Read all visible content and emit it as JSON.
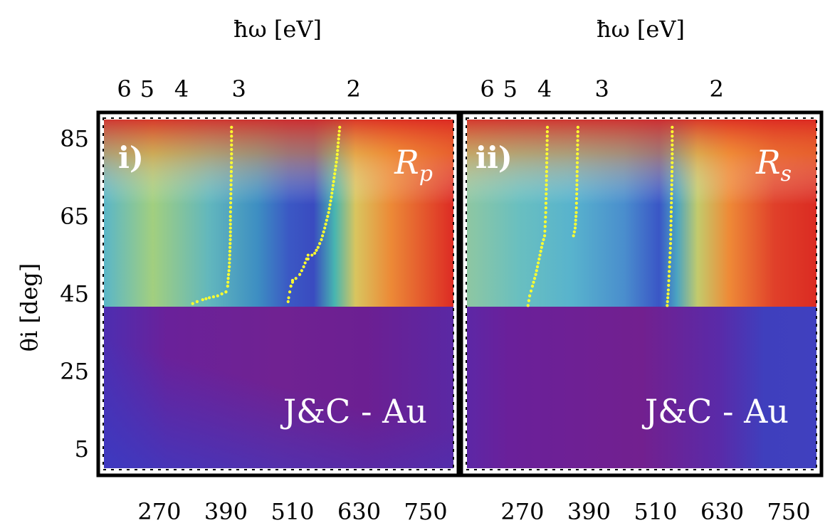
{
  "chart_data": [
    {
      "type": "heatmap",
      "panel_label": "i)",
      "quantity": "Rp",
      "quantity_main": "R",
      "quantity_sub": "p",
      "annotation": "J&C - Au",
      "xlabel_top": "ħω [eV]",
      "ylabel": "θi [deg]",
      "xlim": [
        170,
        800
      ],
      "ylim": [
        0,
        90
      ],
      "x_ticks": [
        270,
        390,
        510,
        630,
        750
      ],
      "x_tick_labels": [
        "270",
        "390",
        "510",
        "630",
        "750"
      ],
      "y_ticks": [
        5,
        25,
        45,
        65,
        85
      ],
      "y_tick_labels": [
        "5",
        "25",
        "45",
        "65",
        "85"
      ],
      "top_ticks": [
        {
          "position": 206.7,
          "label": "6"
        },
        {
          "position": 248,
          "label": "5"
        },
        {
          "position": 310,
          "label": "4"
        },
        {
          "position": 413.3,
          "label": "3"
        },
        {
          "position": 620,
          "label": "2"
        }
      ],
      "critical_angle": 41.8,
      "colorscale": "rainbow (blue = low, red = high)",
      "marker_color": "#ffff2e",
      "dotted_curves": [
        {
          "x": [
            400,
            400,
            399,
            398,
            398,
            397,
            396,
            394,
            393,
            390
          ],
          "y": [
            88,
            80,
            72,
            65,
            60,
            56,
            52,
            49,
            47,
            45.5
          ]
        },
        {
          "x": [
            390,
            375,
            360,
            348,
            338,
            330
          ],
          "y": [
            45.5,
            44.5,
            44,
            43.5,
            43,
            42.5
          ]
        },
        {
          "x": [
            595,
            593,
            590,
            585,
            580,
            575,
            568,
            562,
            556,
            550,
            545,
            538
          ],
          "y": [
            88,
            85,
            80,
            75,
            70,
            66,
            62,
            59,
            57,
            55.5,
            55,
            54
          ]
        },
        {
          "x": [
            538,
            530,
            523,
            516,
            510
          ],
          "y": [
            55,
            52,
            50,
            49,
            48.5
          ]
        },
        {
          "x": [
            510,
            507,
            505,
            503,
            502
          ],
          "y": [
            48,
            47,
            45.5,
            44,
            43
          ]
        }
      ]
    },
    {
      "type": "heatmap",
      "panel_label": "ii)",
      "quantity": "Rs",
      "quantity_main": "R",
      "quantity_sub": "s",
      "annotation": "J&C - Au",
      "xlabel_top": "ħω [eV]",
      "xlim": [
        170,
        800
      ],
      "ylim": [
        0,
        90
      ],
      "x_ticks": [
        270,
        390,
        510,
        630,
        750
      ],
      "x_tick_labels": [
        "270",
        "390",
        "510",
        "630",
        "750"
      ],
      "top_ticks": [
        {
          "position": 206.7,
          "label": "6"
        },
        {
          "position": 248,
          "label": "5"
        },
        {
          "position": 310,
          "label": "4"
        },
        {
          "position": 413.3,
          "label": "3"
        },
        {
          "position": 620,
          "label": "2"
        }
      ],
      "critical_angle": 41.8,
      "colorscale": "rainbow (blue = low, red = high)",
      "marker_color": "#ffff2e",
      "dotted_curves": [
        {
          "x": [
            315,
            314,
            313,
            312,
            310,
            306,
            300,
            294,
            288,
            283,
            280
          ],
          "y": [
            88,
            80,
            72,
            66,
            60,
            58,
            54,
            50,
            47,
            44.5,
            42
          ]
        },
        {
          "x": [
            370,
            369,
            368,
            367,
            365,
            362
          ],
          "y": [
            88,
            80,
            72,
            66,
            62,
            60
          ]
        },
        {
          "x": [
            540,
            540,
            539,
            538,
            537,
            535,
            533,
            531
          ],
          "y": [
            88,
            80,
            72,
            65,
            58,
            52,
            46,
            42
          ]
        }
      ]
    }
  ]
}
